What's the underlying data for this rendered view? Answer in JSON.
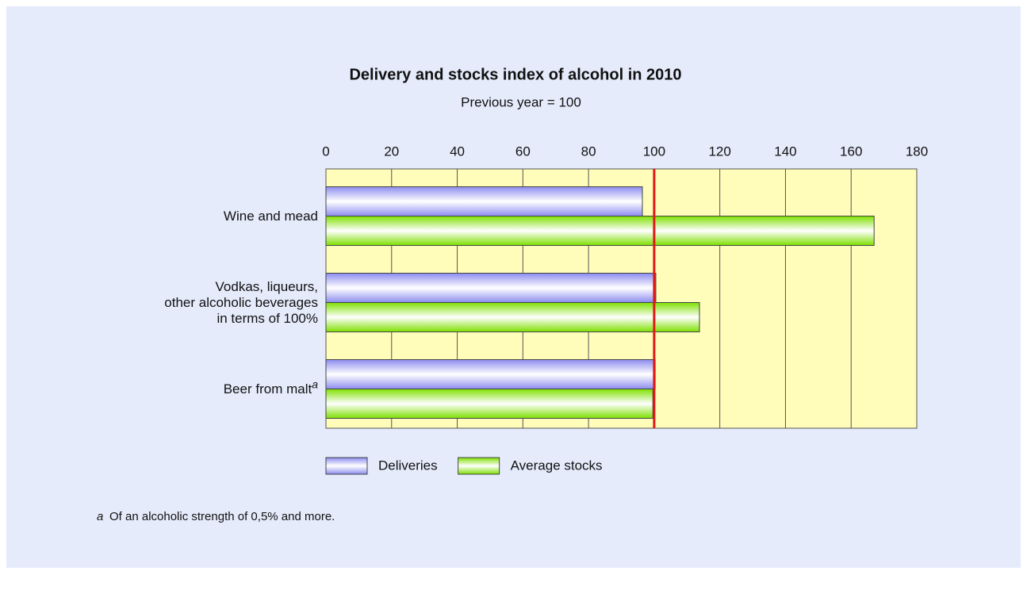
{
  "chart_data": {
    "type": "hbar",
    "title": "Delivery and stocks index of alcohol in 2010",
    "subtitle": "Previous year = 100",
    "categories": [
      "Wine and mead",
      "Vodkas, liqueurs,\nother alcoholic beverages\nin terms of 100%",
      "Beer from malt"
    ],
    "series": [
      {
        "name": "Deliveries",
        "color": "#8c8cf0",
        "values": [
          96.4,
          100.5,
          100.3
        ]
      },
      {
        "name": "Average stocks",
        "color": "#7ee000",
        "values": [
          167,
          113.8,
          99.6
        ]
      }
    ],
    "xlim": [
      0,
      180
    ],
    "xticks": [
      0,
      20,
      40,
      60,
      80,
      100,
      120,
      140,
      160,
      180
    ],
    "grid": true,
    "reference_line": {
      "value": 100,
      "color": "#e01818"
    },
    "legend": "bottom",
    "footnote": {
      "marker": "a",
      "text": "Of an alcoholic strength of 0,5% and more.",
      "category_index": 2
    }
  }
}
